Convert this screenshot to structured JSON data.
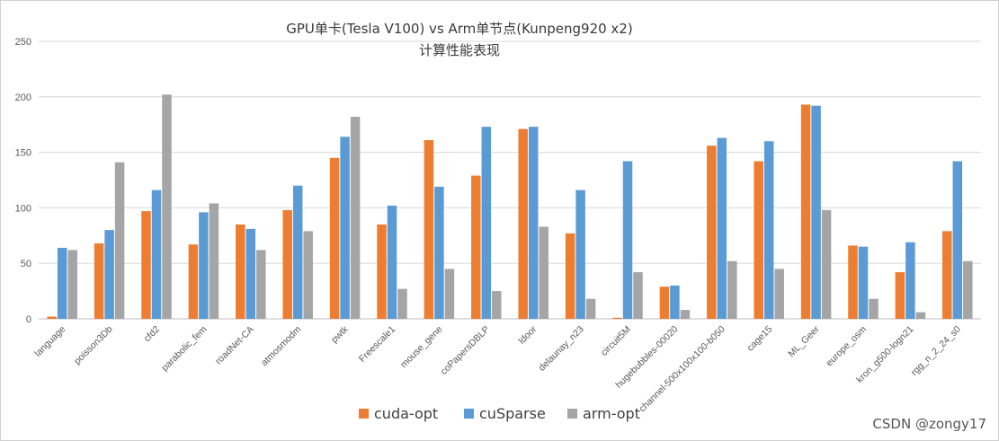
{
  "chart_data": {
    "type": "bar",
    "title": "GPU单卡(Tesla V100) vs Arm单节点(Kunpeng920 x2)",
    "subtitle": "计算性能表现",
    "xlabel": "",
    "ylabel": "",
    "ylim": [
      0,
      250
    ],
    "yticks": [
      0,
      50,
      100,
      150,
      200,
      250
    ],
    "grid": true,
    "legend_position": "bottom",
    "categories": [
      "language",
      "poisson3Db",
      "cfd2",
      "parabolic_fem",
      "roadNet-CA",
      "atmosmodm",
      "pwtk",
      "Freescale1",
      "mouse_gene",
      "coPapersDBLP",
      "ldoor",
      "delaunay_n23",
      "circuit5M",
      "hugebubbles-00020",
      "channel-500x100x100-b050",
      "cage15",
      "ML_Geer",
      "europe_osm",
      "kron_g500-logn21",
      "rgg_n_2_24_s0"
    ],
    "series": [
      {
        "name": "cuda-opt",
        "color": "#ed7d31",
        "values": [
          2,
          68,
          97,
          67,
          85,
          98,
          145,
          85,
          161,
          129,
          171,
          77,
          1,
          29,
          156,
          142,
          193,
          66,
          42,
          79
        ]
      },
      {
        "name": "cuSparse",
        "color": "#5b9bd5",
        "values": [
          64,
          80,
          116,
          96,
          81,
          120,
          164,
          102,
          119,
          173,
          173,
          116,
          142,
          30,
          163,
          160,
          192,
          65,
          69,
          142
        ]
      },
      {
        "name": "arm-opt",
        "color": "#a5a5a5",
        "values": [
          62,
          141,
          202,
          104,
          62,
          79,
          182,
          27,
          45,
          25,
          83,
          18,
          42,
          8,
          52,
          45,
          98,
          18,
          6,
          52
        ]
      }
    ]
  },
  "watermark": "CSDN @zongy17"
}
